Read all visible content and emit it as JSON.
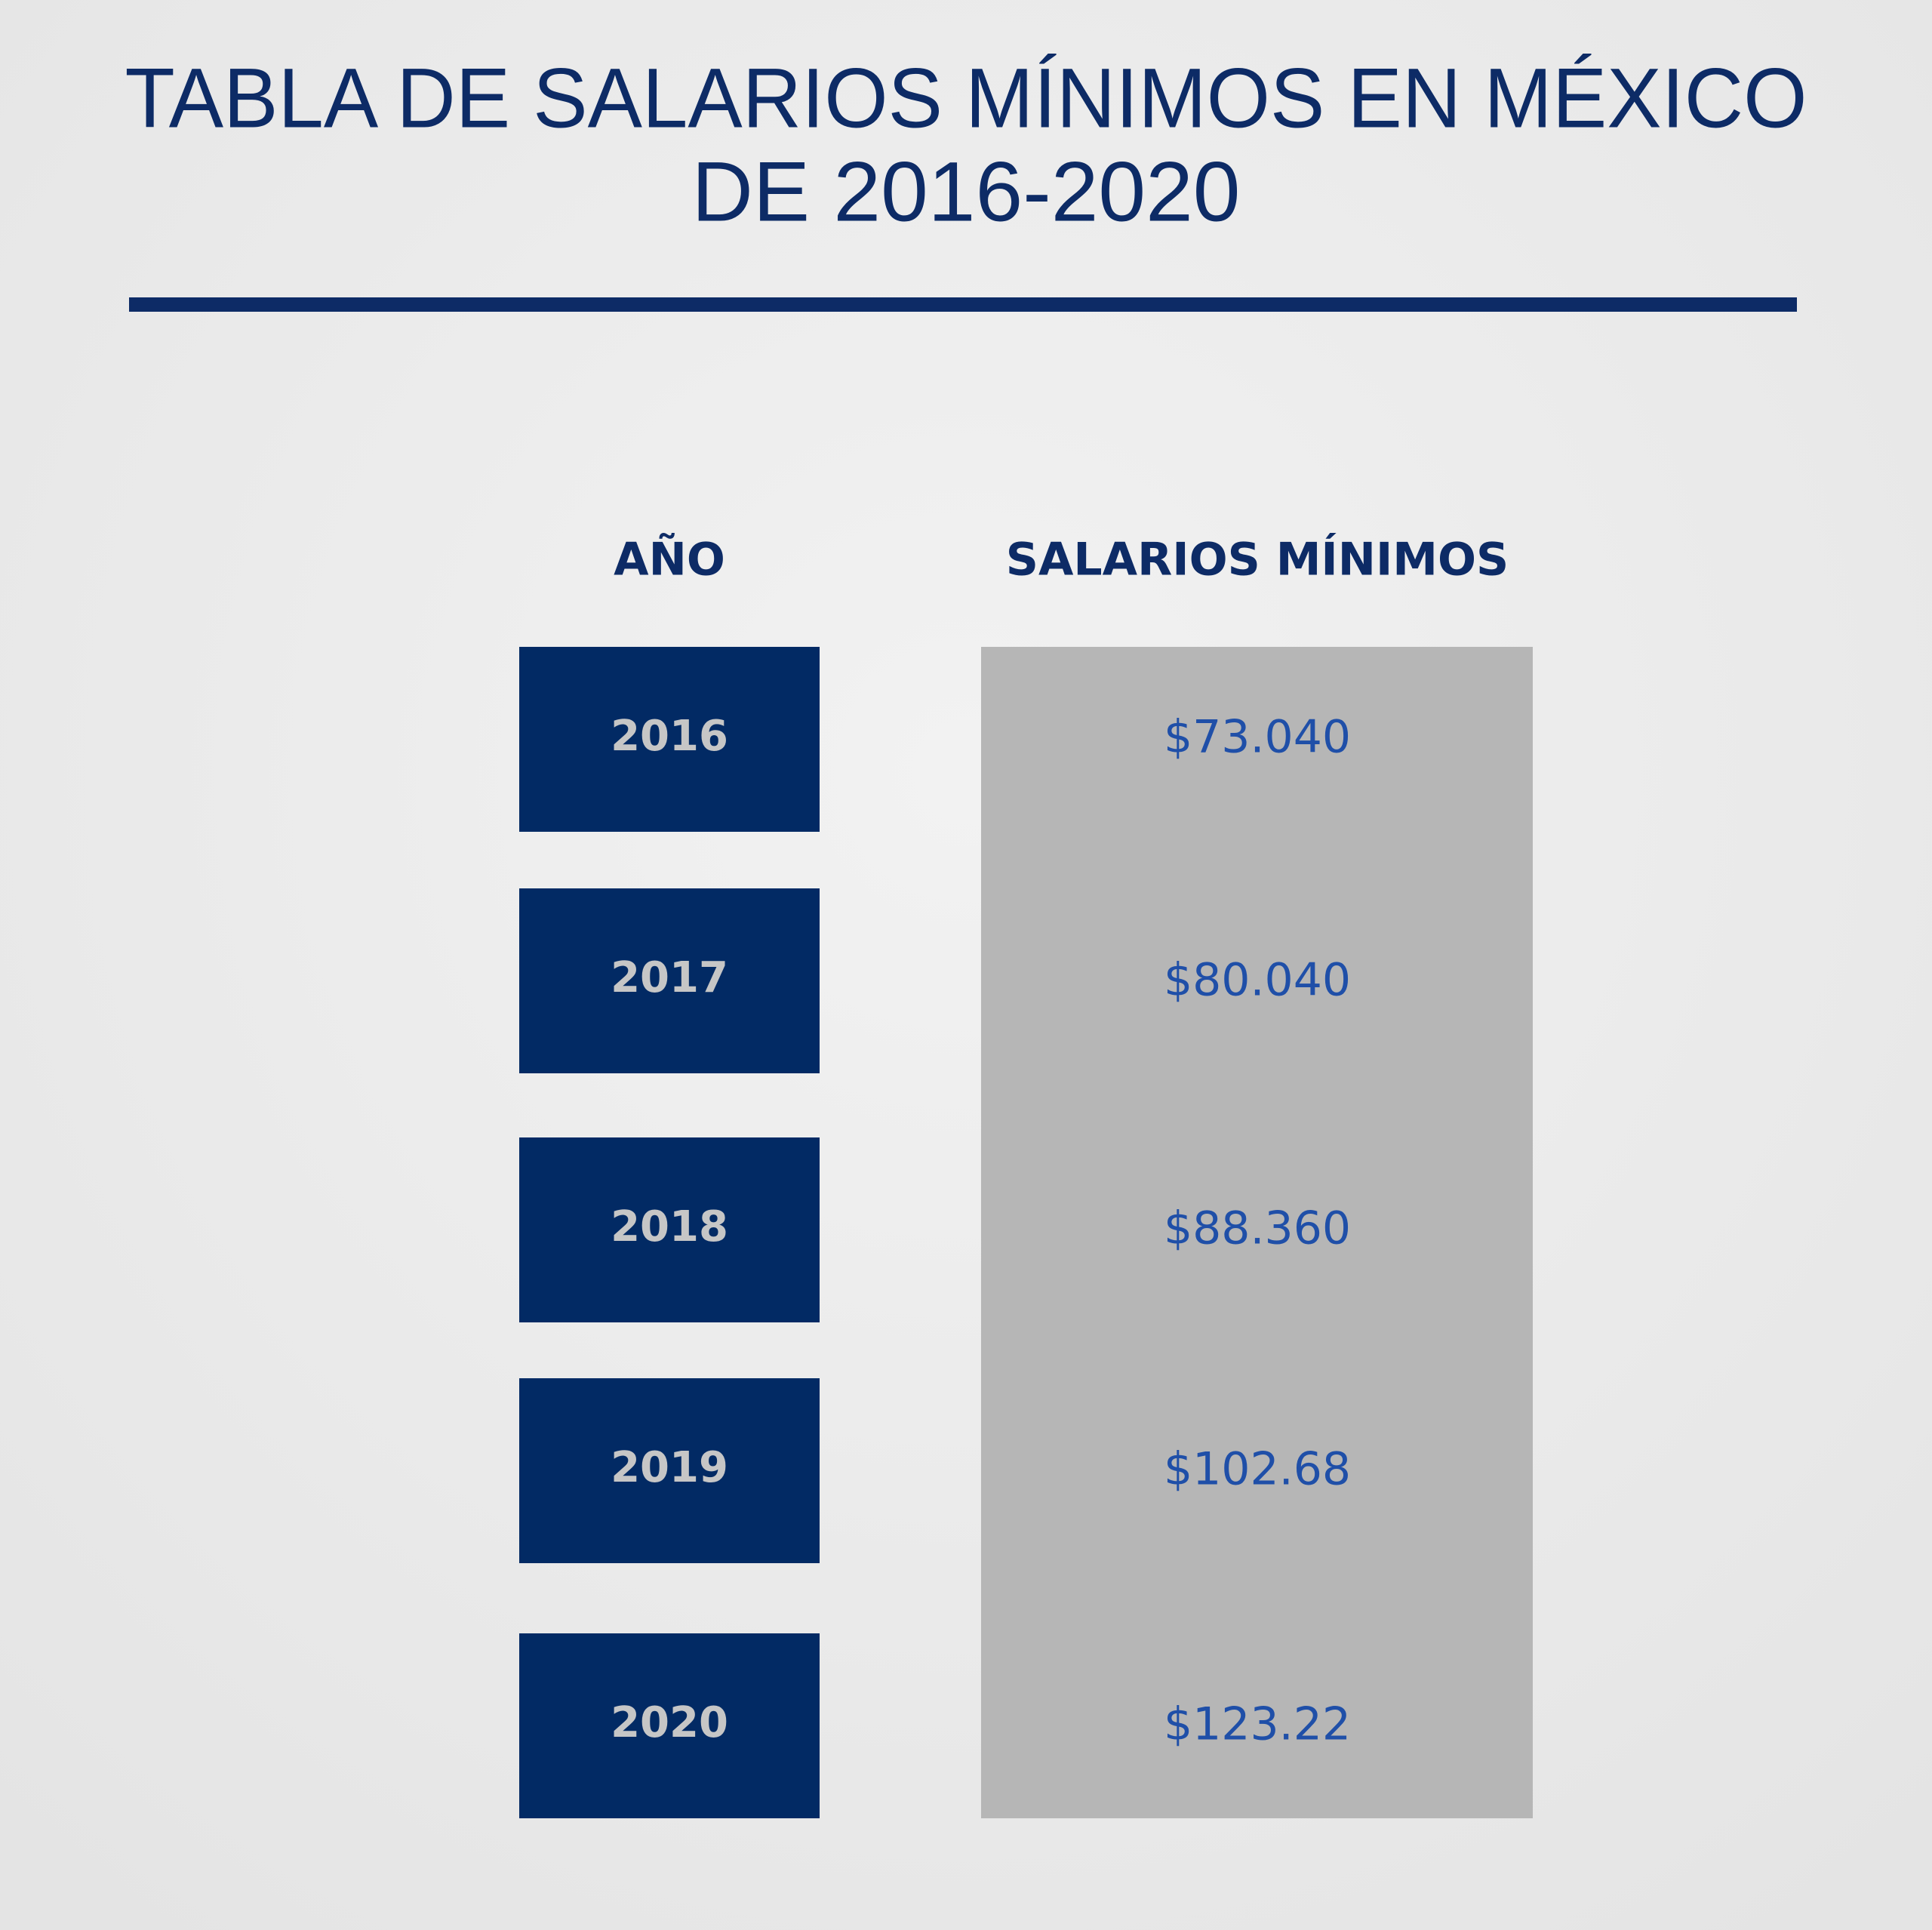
{
  "header": {
    "title_lines": [
      "TABLA DE SALARIOS MÍNIMOS EN MÉXICO",
      "DE 2016-2020"
    ]
  },
  "table": {
    "headers": [
      "AÑO",
      "SALARIOS MÍNIMOS"
    ],
    "rows": [
      [
        "2016",
        "$73.040"
      ],
      [
        "2017",
        "$80.040"
      ],
      [
        "2018",
        "$88.360"
      ],
      [
        "2019",
        "$102.68"
      ],
      [
        "2020",
        "$123.22"
      ]
    ]
  }
}
